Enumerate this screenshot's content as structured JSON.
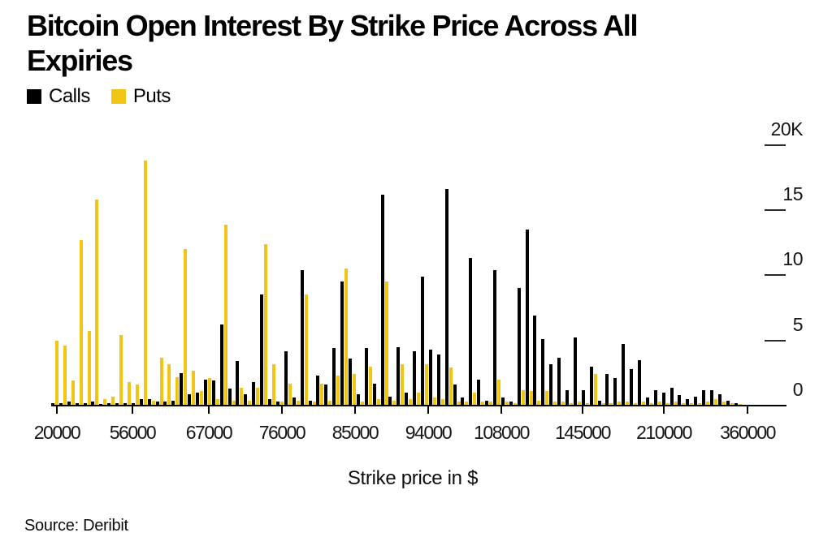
{
  "header": {
    "title": "Bitcoin Open Interest By Strike Price Across All Expiries"
  },
  "legend": {
    "items": [
      {
        "label": "Calls",
        "color": "#000000"
      },
      {
        "label": "Puts",
        "color": "#F2C413"
      }
    ]
  },
  "chart_data": {
    "type": "bar",
    "title": "Bitcoin Open Interest By Strike Price Across All Expiries",
    "xlabel": "Strike price in $",
    "ylabel": "",
    "unit": "thousands of contracts (K)",
    "ylim": [
      0,
      20
    ],
    "grid": false,
    "legend_position": "top-left",
    "y_axis": {
      "side": "right",
      "ticks": [
        {
          "label": "20K",
          "value": 20
        },
        {
          "label": "15",
          "value": 15
        },
        {
          "label": "10",
          "value": 10
        },
        {
          "label": "5",
          "value": 5
        },
        {
          "label": "0",
          "value": 0
        }
      ]
    },
    "x_axis": {
      "title": "Strike price in $",
      "tick_labels": [
        "20000",
        "56000",
        "67000",
        "76000",
        "85000",
        "94000",
        "108000",
        "145000",
        "210000",
        "360000"
      ]
    },
    "series": [
      {
        "name": "Calls",
        "color": "#000000",
        "values": [
          0.2,
          0.2,
          0.3,
          0.2,
          0.2,
          0.3,
          0.1,
          0.2,
          0.2,
          0.2,
          0.2,
          0.5,
          0.5,
          0.3,
          0.3,
          0.4,
          2.5,
          0.9,
          1.0,
          2.0,
          1.9,
          6.2,
          1.3,
          3.4,
          0.9,
          1.8,
          8.5,
          0.5,
          0.3,
          4.2,
          0.6,
          10.4,
          0.4,
          2.3,
          1.6,
          4.4,
          9.5,
          3.6,
          0.9,
          4.4,
          1.7,
          16.2,
          0.7,
          4.5,
          1.0,
          4.2,
          9.9,
          4.3,
          3.9,
          16.6,
          1.6,
          0.6,
          11.3,
          2.0,
          0.4,
          10.4,
          0.6,
          0.3,
          9.0,
          13.5,
          6.9,
          5.1,
          3.2,
          3.7,
          1.2,
          5.2,
          1.2,
          3.0,
          0.4,
          2.4,
          2.1,
          4.7,
          2.8,
          3.5,
          0.6,
          1.2,
          1.0,
          1.4,
          0.8,
          0.5,
          0.7,
          1.2,
          1.2,
          0.9,
          0.4,
          0.2
        ]
      },
      {
        "name": "Puts",
        "color": "#F2C413",
        "values": [
          5.0,
          4.6,
          1.9,
          12.7,
          5.7,
          15.8,
          0.5,
          0.7,
          5.4,
          1.8,
          1.6,
          18.8,
          0.4,
          3.7,
          3.2,
          2.2,
          12.0,
          2.7,
          1.1,
          2.1,
          0.5,
          13.9,
          0.4,
          1.4,
          0.4,
          1.4,
          12.4,
          3.2,
          0.3,
          1.7,
          0.4,
          8.5,
          0.3,
          1.7,
          0.4,
          2.3,
          10.5,
          2.4,
          0.3,
          3.0,
          0.5,
          9.5,
          0.4,
          3.2,
          0.5,
          1.0,
          3.2,
          0.6,
          0.5,
          2.9,
          0.3,
          0.3,
          1.0,
          0.3,
          0.3,
          2.0,
          0.3,
          0.2,
          1.2,
          1.1,
          0.4,
          1.1,
          0.3,
          0.3,
          0.2,
          0.3,
          0.2,
          2.4,
          0.2,
          0.2,
          0.3,
          0.3,
          0.2,
          0.3,
          0.2,
          0.3,
          0.2,
          0.3,
          0.2,
          0.2,
          0.2,
          0.3,
          0.5,
          0.3,
          0.2,
          0.1
        ]
      }
    ]
  },
  "footer": {
    "source": "Source: Deribit"
  }
}
